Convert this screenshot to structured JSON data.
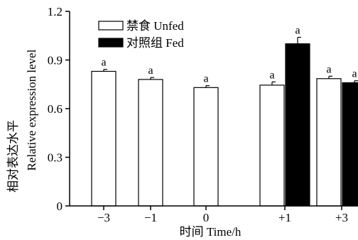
{
  "chart_data": {
    "type": "bar",
    "xlabel": "时间 Time/h",
    "ylabel_cn": "相对表达水平",
    "ylabel_en": "Relative expression level",
    "ylim": [
      0,
      1.2
    ],
    "yticks": [
      "0",
      "0.3",
      "0.6",
      "0.9",
      "1.2"
    ],
    "ytick_values": [
      0,
      0.3,
      0.6,
      0.9,
      1.2
    ],
    "categories": [
      "−3",
      "−1",
      "0",
      "+1",
      "+3"
    ],
    "legend_position": "top-left",
    "series": [
      {
        "name": "禁食 Unfed",
        "color": "#ffffff",
        "values": [
          0.83,
          0.78,
          0.73,
          0.745,
          0.785
        ],
        "errors": [
          0.012,
          0.012,
          0.012,
          0.02,
          0.015
        ],
        "labels": [
          "a",
          "a",
          "a",
          "a",
          "a"
        ]
      },
      {
        "name": "对照组 Fed",
        "color": "#000000",
        "values": [
          null,
          null,
          null,
          1.0,
          0.76
        ],
        "errors": [
          null,
          null,
          null,
          0.04,
          0.012
        ],
        "labels": [
          null,
          null,
          null,
          "a",
          "a"
        ]
      }
    ]
  }
}
